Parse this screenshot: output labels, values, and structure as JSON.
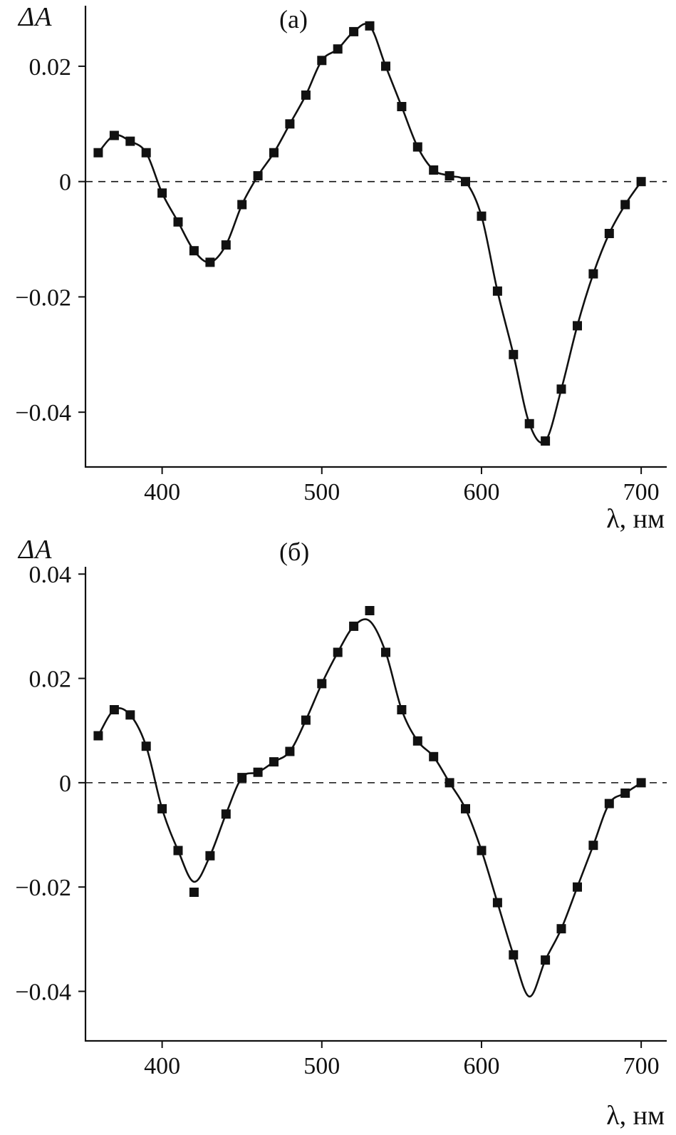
{
  "page": {
    "background": "#ffffff",
    "line_color": "#111111"
  },
  "chart_data": [
    {
      "id": "a",
      "type": "line",
      "panel_label": "(а)",
      "ylabel": "ΔA",
      "xlabel": "λ, нм",
      "xlim": [
        352,
        716
      ],
      "ylim": [
        -0.0495,
        0.0305
      ],
      "xticks": [
        400,
        500,
        600,
        700
      ],
      "yticks": [
        {
          "v": 0.02,
          "label": "0.02"
        },
        {
          "v": 0,
          "label": "0"
        },
        {
          "v": -0.02,
          "label": "−0.02"
        },
        {
          "v": -0.04,
          "label": "−0.04"
        }
      ],
      "zero_line_dashed": true,
      "markers": [
        [
          360,
          0.005
        ],
        [
          370,
          0.008
        ],
        [
          380,
          0.007
        ],
        [
          390,
          0.005
        ],
        [
          400,
          -0.002
        ],
        [
          410,
          -0.007
        ],
        [
          420,
          -0.012
        ],
        [
          430,
          -0.014
        ],
        [
          440,
          -0.011
        ],
        [
          450,
          -0.004
        ],
        [
          460,
          0.001
        ],
        [
          470,
          0.005
        ],
        [
          480,
          0.01
        ],
        [
          490,
          0.015
        ],
        [
          500,
          0.021
        ],
        [
          510,
          0.023
        ],
        [
          520,
          0.026
        ],
        [
          530,
          0.027
        ],
        [
          540,
          0.02
        ],
        [
          550,
          0.013
        ],
        [
          560,
          0.006
        ],
        [
          570,
          0.002
        ],
        [
          580,
          0.001
        ],
        [
          590,
          0.0
        ],
        [
          600,
          -0.006
        ],
        [
          610,
          -0.019
        ],
        [
          620,
          -0.03
        ],
        [
          630,
          -0.042
        ],
        [
          640,
          -0.045
        ],
        [
          650,
          -0.036
        ],
        [
          660,
          -0.025
        ],
        [
          670,
          -0.016
        ],
        [
          680,
          -0.009
        ],
        [
          690,
          -0.004
        ],
        [
          700,
          0.0
        ]
      ],
      "line": [
        [
          360,
          0.005
        ],
        [
          370,
          0.008
        ],
        [
          380,
          0.007
        ],
        [
          390,
          0.005
        ],
        [
          400,
          -0.002
        ],
        [
          410,
          -0.007
        ],
        [
          420,
          -0.012
        ],
        [
          430,
          -0.014
        ],
        [
          440,
          -0.011
        ],
        [
          450,
          -0.004
        ],
        [
          460,
          0.001
        ],
        [
          470,
          0.005
        ],
        [
          480,
          0.01
        ],
        [
          490,
          0.015
        ],
        [
          500,
          0.021
        ],
        [
          510,
          0.023
        ],
        [
          520,
          0.026
        ],
        [
          530,
          0.027
        ],
        [
          540,
          0.02
        ],
        [
          550,
          0.013
        ],
        [
          560,
          0.006
        ],
        [
          570,
          0.002
        ],
        [
          580,
          0.001
        ],
        [
          590,
          0.0
        ],
        [
          600,
          -0.006
        ],
        [
          610,
          -0.019
        ],
        [
          620,
          -0.03
        ],
        [
          630,
          -0.042
        ],
        [
          640,
          -0.045
        ],
        [
          650,
          -0.036
        ],
        [
          660,
          -0.025
        ],
        [
          670,
          -0.016
        ],
        [
          680,
          -0.009
        ],
        [
          690,
          -0.004
        ],
        [
          700,
          0.0
        ]
      ]
    },
    {
      "id": "b",
      "type": "line",
      "panel_label": "(б)",
      "ylabel": "ΔA",
      "xlabel": "λ, нм",
      "xlim": [
        352,
        716
      ],
      "ylim": [
        -0.0495,
        0.0414
      ],
      "xticks": [
        400,
        500,
        600,
        700
      ],
      "yticks": [
        {
          "v": 0.04,
          "label": "0.04"
        },
        {
          "v": 0.02,
          "label": "0.02"
        },
        {
          "v": 0,
          "label": "0"
        },
        {
          "v": -0.02,
          "label": "−0.02"
        },
        {
          "v": -0.04,
          "label": "−0.04"
        }
      ],
      "zero_line_dashed": true,
      "markers": [
        [
          360,
          0.009
        ],
        [
          370,
          0.014
        ],
        [
          380,
          0.013
        ],
        [
          390,
          0.007
        ],
        [
          400,
          -0.005
        ],
        [
          410,
          -0.013
        ],
        [
          420,
          -0.021
        ],
        [
          430,
          -0.014
        ],
        [
          440,
          -0.006
        ],
        [
          450,
          0.001
        ],
        [
          460,
          0.002
        ],
        [
          470,
          0.004
        ],
        [
          480,
          0.006
        ],
        [
          490,
          0.012
        ],
        [
          500,
          0.019
        ],
        [
          510,
          0.025
        ],
        [
          520,
          0.03
        ],
        [
          530,
          0.033
        ],
        [
          540,
          0.025
        ],
        [
          550,
          0.014
        ],
        [
          560,
          0.008
        ],
        [
          570,
          0.005
        ],
        [
          580,
          0.0
        ],
        [
          590,
          -0.005
        ],
        [
          600,
          -0.013
        ],
        [
          610,
          -0.023
        ],
        [
          620,
          -0.033
        ],
        [
          640,
          -0.034
        ],
        [
          650,
          -0.028
        ],
        [
          660,
          -0.02
        ],
        [
          670,
          -0.012
        ],
        [
          680,
          -0.004
        ],
        [
          690,
          -0.002
        ],
        [
          700,
          0.0
        ]
      ],
      "line": [
        [
          360,
          0.009
        ],
        [
          370,
          0.014
        ],
        [
          380,
          0.013
        ],
        [
          390,
          0.007
        ],
        [
          400,
          -0.005
        ],
        [
          410,
          -0.013
        ],
        [
          420,
          -0.019
        ],
        [
          430,
          -0.014
        ],
        [
          440,
          -0.006
        ],
        [
          450,
          0.001
        ],
        [
          460,
          0.002
        ],
        [
          470,
          0.004
        ],
        [
          480,
          0.006
        ],
        [
          490,
          0.012
        ],
        [
          500,
          0.019
        ],
        [
          510,
          0.025
        ],
        [
          520,
          0.03
        ],
        [
          530,
          0.031
        ],
        [
          540,
          0.025
        ],
        [
          550,
          0.014
        ],
        [
          560,
          0.008
        ],
        [
          570,
          0.005
        ],
        [
          580,
          0.0
        ],
        [
          590,
          -0.005
        ],
        [
          600,
          -0.013
        ],
        [
          610,
          -0.023
        ],
        [
          620,
          -0.033
        ],
        [
          630,
          -0.041
        ],
        [
          640,
          -0.034
        ],
        [
          650,
          -0.028
        ],
        [
          660,
          -0.02
        ],
        [
          670,
          -0.012
        ],
        [
          680,
          -0.004
        ],
        [
          690,
          -0.002
        ],
        [
          700,
          0.0
        ]
      ]
    }
  ]
}
